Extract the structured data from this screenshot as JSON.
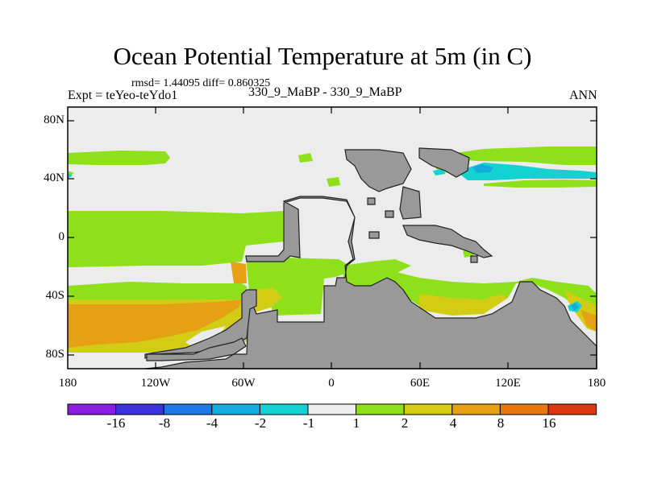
{
  "title": "Ocean Potential Temperature at 5m (in C)",
  "stats_line": "rmsd= 1.44095  diff= 0.860325",
  "experiment": "Expt = teYeo-teYdo1",
  "case_label": "330_9_MaBP - 330_9_MaBP",
  "season": "ANN",
  "y_axis": {
    "ticks": [
      "80N",
      "40N",
      "0",
      "40S",
      "80S"
    ]
  },
  "x_axis": {
    "ticks": [
      "180",
      "120W",
      "60W",
      "0",
      "60E",
      "120E",
      "180"
    ]
  },
  "colorbar": {
    "colors": [
      "#8a1ee0",
      "#3c32dc",
      "#1e78e6",
      "#14aadc",
      "#14d2d2",
      "#ececec",
      "#8ee01a",
      "#d2cc14",
      "#e6a014",
      "#e6780f",
      "#dc3714"
    ],
    "labels": [
      "-16",
      "-8",
      "-4",
      "-2",
      "-1",
      "1",
      "2",
      "4",
      "8",
      "16"
    ]
  },
  "colors": {
    "land": "#999999",
    "neutral": "#ececec",
    "green": "#8ee01a",
    "yellow": "#d2cc14",
    "orange": "#e6a014",
    "cyan": "#14d2d2",
    "blue": "#14aadc"
  }
}
